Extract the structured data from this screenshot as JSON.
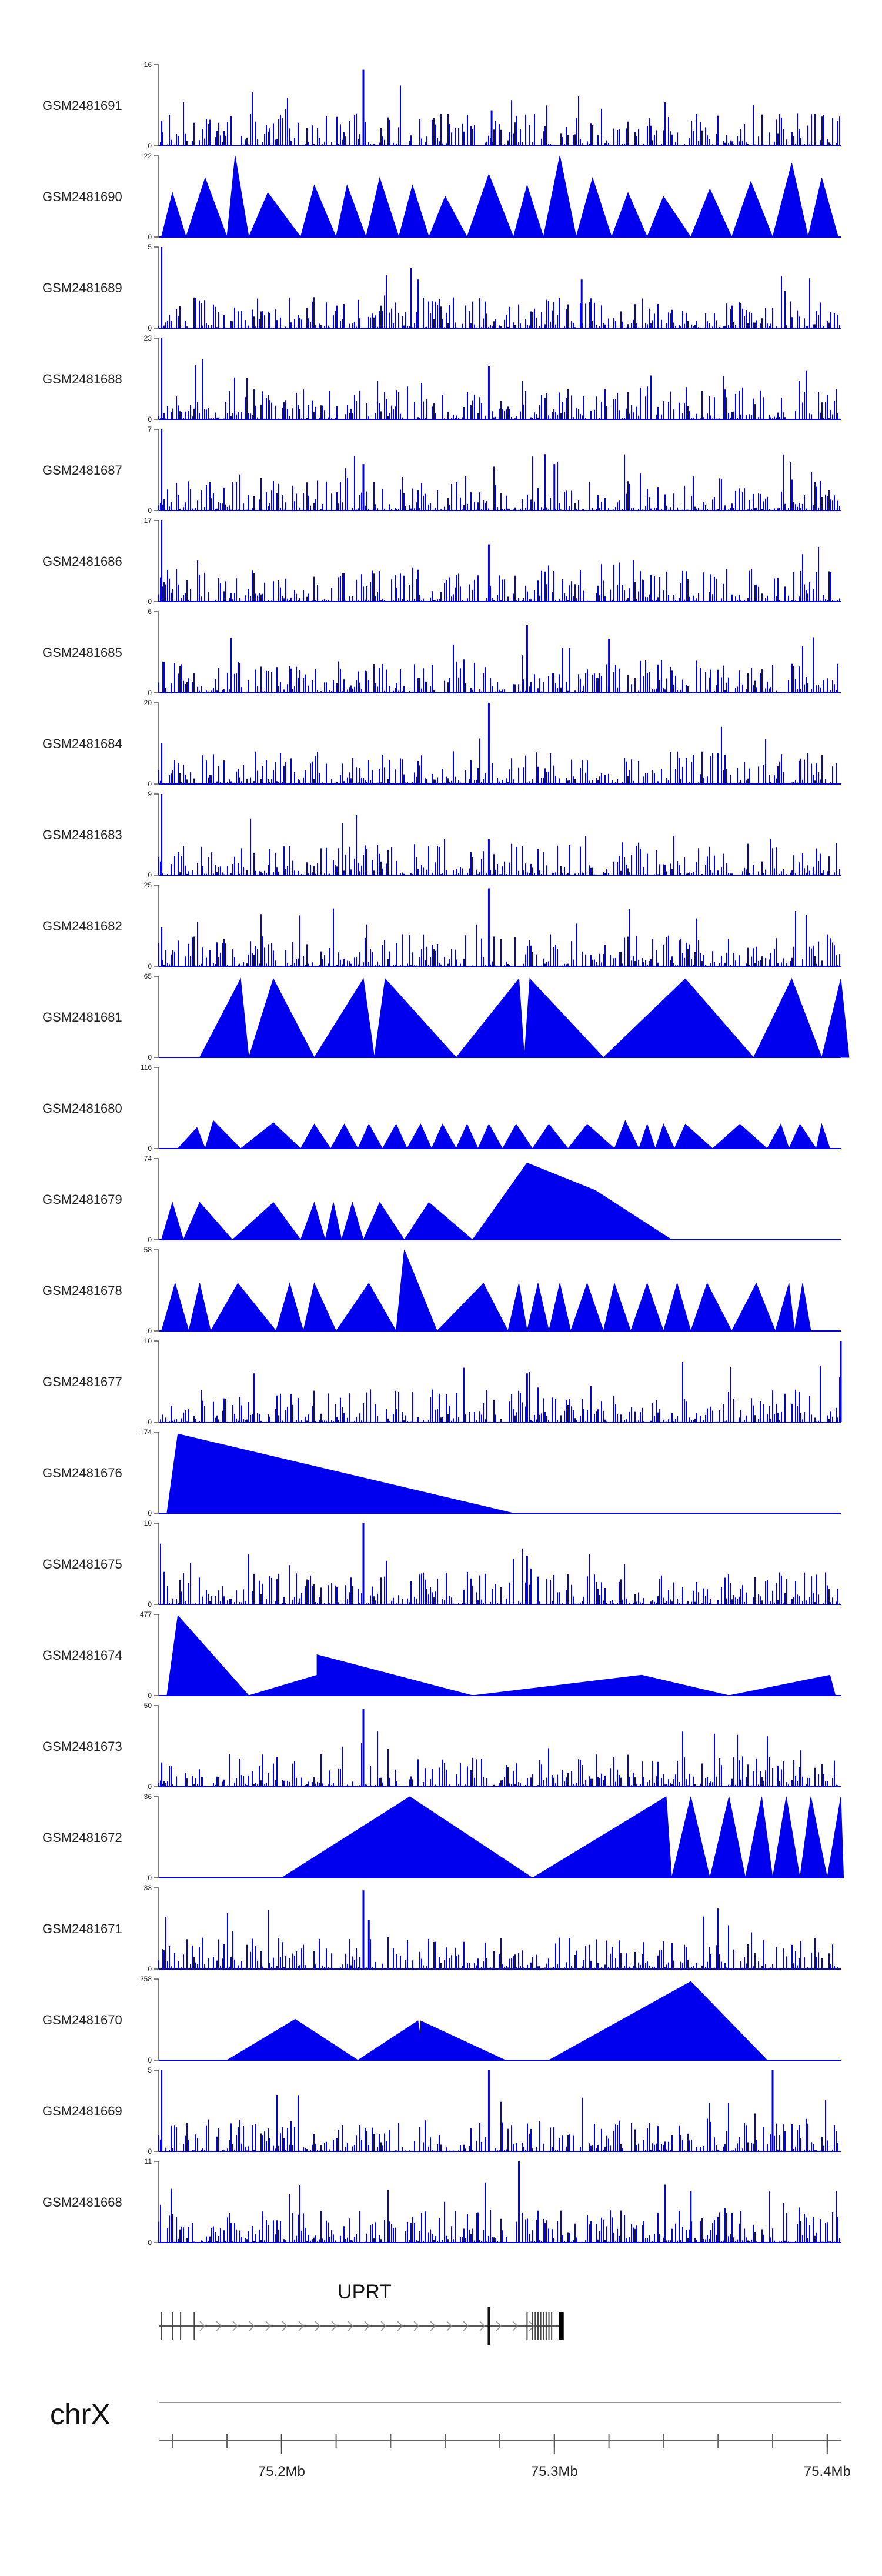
{
  "chart_data": {
    "type": "area",
    "title": "",
    "xlabel": "",
    "ylabel": "",
    "chromosome": "chrX",
    "x_range_mb": [
      75.155,
      75.405
    ],
    "x_ticks": [
      {
        "value": 75.2,
        "label": "75.2Mb"
      },
      {
        "value": 75.3,
        "label": "75.3Mb"
      },
      {
        "value": 75.4,
        "label": "75.4Mb"
      }
    ],
    "gene": {
      "name": "UPRT",
      "start_mb": 75.155,
      "end_mb": 75.303,
      "strand": "+"
    },
    "tracks": [
      {
        "name": "GSM2481691",
        "ymax": 16,
        "ymax_label": "16",
        "kind": "dense",
        "peaks": [
          [
            75.23,
            15
          ],
          [
            75.277,
            7
          ],
          [
            75.156,
            5
          ]
        ]
      },
      {
        "name": "GSM2481690",
        "ymax": 22,
        "ymax_label": "22",
        "kind": "sparse",
        "points": [
          [
            75.156,
            0
          ],
          [
            75.16,
            12
          ],
          [
            75.165,
            0
          ],
          [
            75.172,
            16
          ],
          [
            75.18,
            0
          ],
          [
            75.183,
            22
          ],
          [
            75.188,
            0
          ],
          [
            75.195,
            12
          ],
          [
            75.207,
            0
          ],
          [
            75.212,
            14
          ],
          [
            75.22,
            0
          ],
          [
            75.224,
            14
          ],
          [
            75.231,
            0
          ],
          [
            75.236,
            16
          ],
          [
            75.243,
            0
          ],
          [
            75.248,
            14
          ],
          [
            75.254,
            0
          ],
          [
            75.26,
            11
          ],
          [
            75.268,
            0
          ],
          [
            75.276,
            17
          ],
          [
            75.285,
            0
          ],
          [
            75.29,
            14
          ],
          [
            75.296,
            0
          ],
          [
            75.302,
            22
          ],
          [
            75.308,
            0
          ],
          [
            75.314,
            16
          ],
          [
            75.321,
            0
          ],
          [
            75.327,
            12
          ],
          [
            75.334,
            0
          ],
          [
            75.34,
            11
          ],
          [
            75.35,
            0
          ],
          [
            75.357,
            13
          ],
          [
            75.365,
            0
          ],
          [
            75.372,
            15
          ],
          [
            75.38,
            0
          ],
          [
            75.387,
            20
          ],
          [
            75.393,
            0
          ],
          [
            75.398,
            16
          ],
          [
            75.404,
            0
          ]
        ]
      },
      {
        "name": "GSM2481689",
        "ymax": 5,
        "ymax_label": "5",
        "kind": "dense",
        "peaks": [
          [
            75.156,
            5
          ],
          [
            75.25,
            3
          ],
          [
            75.31,
            3
          ]
        ]
      },
      {
        "name": "GSM2481688",
        "ymax": 23,
        "ymax_label": "23",
        "kind": "dense",
        "peaks": [
          [
            75.156,
            23
          ],
          [
            75.276,
            15
          ]
        ]
      },
      {
        "name": "GSM2481687",
        "ymax": 7,
        "ymax_label": "7",
        "kind": "dense",
        "peaks": [
          [
            75.156,
            7
          ],
          [
            75.23,
            4
          ],
          [
            75.3,
            4
          ]
        ]
      },
      {
        "name": "GSM2481686",
        "ymax": 17,
        "ymax_label": "17",
        "kind": "dense",
        "peaks": [
          [
            75.156,
            17
          ],
          [
            75.276,
            12
          ]
        ]
      },
      {
        "name": "GSM2481685",
        "ymax": 6,
        "ymax_label": "6",
        "kind": "dense",
        "peaks": [
          [
            75.29,
            5
          ],
          [
            75.32,
            4
          ]
        ]
      },
      {
        "name": "GSM2481684",
        "ymax": 20,
        "ymax_label": "20",
        "kind": "dense",
        "peaks": [
          [
            75.276,
            20
          ],
          [
            75.156,
            10
          ]
        ]
      },
      {
        "name": "GSM2481683",
        "ymax": 9,
        "ymax_label": "9",
        "kind": "dense",
        "peaks": [
          [
            75.156,
            9
          ],
          [
            75.276,
            4
          ]
        ]
      },
      {
        "name": "GSM2481682",
        "ymax": 25,
        "ymax_label": "25",
        "kind": "dense",
        "peaks": [
          [
            75.276,
            24
          ],
          [
            75.156,
            12
          ]
        ]
      },
      {
        "name": "GSM2481681",
        "ymax": 65,
        "ymax_label": "65",
        "kind": "sparse",
        "points": [
          [
            75.17,
            0
          ],
          [
            75.185,
            63
          ],
          [
            75.188,
            0
          ],
          [
            75.197,
            63
          ],
          [
            75.212,
            0
          ],
          [
            75.23,
            63
          ],
          [
            75.234,
            0
          ],
          [
            75.238,
            63
          ],
          [
            75.264,
            0
          ],
          [
            75.287,
            63
          ],
          [
            75.289,
            0
          ],
          [
            75.291,
            63
          ],
          [
            75.318,
            0
          ],
          [
            75.348,
            63
          ],
          [
            75.373,
            0
          ],
          [
            75.387,
            63
          ],
          [
            75.398,
            0
          ],
          [
            75.405,
            63
          ],
          [
            75.408,
            0
          ]
        ]
      },
      {
        "name": "GSM2481680",
        "ymax": 116,
        "ymax_label": "116",
        "kind": "sparse",
        "points": [
          [
            75.162,
            0
          ],
          [
            75.169,
            30
          ],
          [
            75.172,
            0
          ],
          [
            75.175,
            40
          ],
          [
            75.185,
            0
          ],
          [
            75.197,
            37
          ],
          [
            75.207,
            0
          ],
          [
            75.212,
            35
          ],
          [
            75.218,
            0
          ],
          [
            75.223,
            35
          ],
          [
            75.228,
            0
          ],
          [
            75.232,
            35
          ],
          [
            75.237,
            0
          ],
          [
            75.242,
            35
          ],
          [
            75.246,
            0
          ],
          [
            75.251,
            35
          ],
          [
            75.255,
            0
          ],
          [
            75.259,
            35
          ],
          [
            75.264,
            0
          ],
          [
            75.268,
            35
          ],
          [
            75.272,
            0
          ],
          [
            75.276,
            35
          ],
          [
            75.281,
            0
          ],
          [
            75.286,
            35
          ],
          [
            75.292,
            0
          ],
          [
            75.298,
            35
          ],
          [
            75.305,
            0
          ],
          [
            75.312,
            35
          ],
          [
            75.322,
            0
          ],
          [
            75.326,
            40
          ],
          [
            75.331,
            0
          ],
          [
            75.334,
            35
          ],
          [
            75.337,
            0
          ],
          [
            75.34,
            35
          ],
          [
            75.344,
            0
          ],
          [
            75.348,
            35
          ],
          [
            75.358,
            0
          ],
          [
            75.368,
            35
          ],
          [
            75.378,
            0
          ],
          [
            75.383,
            35
          ],
          [
            75.386,
            0
          ],
          [
            75.39,
            35
          ],
          [
            75.396,
            0
          ],
          [
            75.398,
            35
          ],
          [
            75.401,
            0
          ]
        ]
      },
      {
        "name": "GSM2481679",
        "ymax": 74,
        "ymax_label": "74",
        "kind": "sparse",
        "points": [
          [
            75.156,
            0
          ],
          [
            75.16,
            34
          ],
          [
            75.164,
            0
          ],
          [
            75.17,
            34
          ],
          [
            75.182,
            0
          ],
          [
            75.197,
            34
          ],
          [
            75.207,
            0
          ],
          [
            75.212,
            34
          ],
          [
            75.216,
            0
          ],
          [
            75.219,
            34
          ],
          [
            75.222,
            0
          ],
          [
            75.226,
            34
          ],
          [
            75.23,
            0
          ],
          [
            75.236,
            34
          ],
          [
            75.245,
            0
          ],
          [
            75.254,
            34
          ],
          [
            75.27,
            0
          ],
          [
            75.29,
            70
          ],
          [
            75.315,
            45
          ],
          [
            75.343,
            0
          ]
        ]
      },
      {
        "name": "GSM2481678",
        "ymax": 58,
        "ymax_label": "58",
        "kind": "sparse",
        "points": [
          [
            75.156,
            0
          ],
          [
            75.161,
            34
          ],
          [
            75.166,
            0
          ],
          [
            75.17,
            34
          ],
          [
            75.174,
            0
          ],
          [
            75.184,
            34
          ],
          [
            75.198,
            0
          ],
          [
            75.203,
            34
          ],
          [
            75.208,
            0
          ],
          [
            75.212,
            34
          ],
          [
            75.22,
            0
          ],
          [
            75.232,
            34
          ],
          [
            75.242,
            0
          ],
          [
            75.245,
            58
          ],
          [
            75.257,
            0
          ],
          [
            75.274,
            34
          ],
          [
            75.283,
            0
          ],
          [
            75.287,
            34
          ],
          [
            75.29,
            0
          ],
          [
            75.294,
            34
          ],
          [
            75.298,
            0
          ],
          [
            75.302,
            34
          ],
          [
            75.306,
            0
          ],
          [
            75.312,
            34
          ],
          [
            75.318,
            0
          ],
          [
            75.322,
            34
          ],
          [
            75.328,
            0
          ],
          [
            75.334,
            34
          ],
          [
            75.34,
            0
          ],
          [
            75.345,
            34
          ],
          [
            75.35,
            0
          ],
          [
            75.356,
            34
          ],
          [
            75.365,
            0
          ],
          [
            75.374,
            34
          ],
          [
            75.381,
            0
          ],
          [
            75.386,
            34
          ],
          [
            75.388,
            0
          ],
          [
            75.391,
            34
          ],
          [
            75.394,
            0
          ]
        ]
      },
      {
        "name": "GSM2481677",
        "ymax": 10,
        "ymax_label": "10",
        "kind": "dense",
        "peaks": [
          [
            75.405,
            10
          ],
          [
            75.29,
            6
          ],
          [
            75.19,
            6
          ]
        ]
      },
      {
        "name": "GSM2481676",
        "ymax": 174,
        "ymax_label": "174",
        "kind": "sparse",
        "points": [
          [
            75.158,
            0
          ],
          [
            75.162,
            170
          ],
          [
            75.285,
            0
          ]
        ]
      },
      {
        "name": "GSM2481675",
        "ymax": 10,
        "ymax_label": "10",
        "kind": "dense",
        "peaks": [
          [
            75.23,
            10
          ],
          [
            75.29,
            6
          ]
        ]
      },
      {
        "name": "GSM2481674",
        "ymax": 477,
        "ymax_label": "477",
        "kind": "sparse",
        "points": [
          [
            75.158,
            0
          ],
          [
            75.162,
            470
          ],
          [
            75.188,
            0
          ],
          [
            75.213,
            120
          ],
          [
            75.213,
            240
          ],
          [
            75.27,
            0
          ],
          [
            75.332,
            120
          ],
          [
            75.364,
            0
          ],
          [
            75.401,
            120
          ],
          [
            75.403,
            0
          ]
        ]
      },
      {
        "name": "GSM2481673",
        "ymax": 50,
        "ymax_label": "50",
        "kind": "dense",
        "peaks": [
          [
            75.23,
            48
          ],
          [
            75.156,
            15
          ]
        ]
      },
      {
        "name": "GSM2481672",
        "ymax": 36,
        "ymax_label": "36",
        "kind": "sparse",
        "points": [
          [
            75.2,
            0
          ],
          [
            75.247,
            36
          ],
          [
            75.292,
            0
          ],
          [
            75.341,
            36
          ],
          [
            75.343,
            0
          ],
          [
            75.35,
            36
          ],
          [
            75.357,
            0
          ],
          [
            75.364,
            36
          ],
          [
            75.37,
            0
          ],
          [
            75.376,
            36
          ],
          [
            75.38,
            0
          ],
          [
            75.385,
            36
          ],
          [
            75.39,
            0
          ],
          [
            75.394,
            36
          ],
          [
            75.4,
            0
          ],
          [
            75.405,
            36
          ],
          [
            75.406,
            0
          ]
        ]
      },
      {
        "name": "GSM2481671",
        "ymax": 33,
        "ymax_label": "33",
        "kind": "dense",
        "peaks": [
          [
            75.23,
            32
          ],
          [
            75.232,
            20
          ]
        ]
      },
      {
        "name": "GSM2481670",
        "ymax": 258,
        "ymax_label": "258",
        "kind": "sparse",
        "points": [
          [
            75.18,
            0
          ],
          [
            75.205,
            130
          ],
          [
            75.228,
            0
          ],
          [
            75.25,
            125
          ],
          [
            75.251,
            70
          ],
          [
            75.251,
            125
          ],
          [
            75.282,
            0
          ],
          [
            75.298,
            0
          ],
          [
            75.35,
            250
          ],
          [
            75.378,
            0
          ]
        ]
      },
      {
        "name": "GSM2481669",
        "ymax": 5,
        "ymax_label": "5",
        "kind": "dense",
        "peaks": [
          [
            75.276,
            5
          ],
          [
            75.156,
            5
          ],
          [
            75.38,
            5
          ]
        ]
      },
      {
        "name": "GSM2481668",
        "ymax": 11,
        "ymax_label": "11",
        "kind": "dense",
        "peaks": [
          [
            75.287,
            11
          ],
          [
            75.35,
            7
          ]
        ]
      }
    ]
  }
}
